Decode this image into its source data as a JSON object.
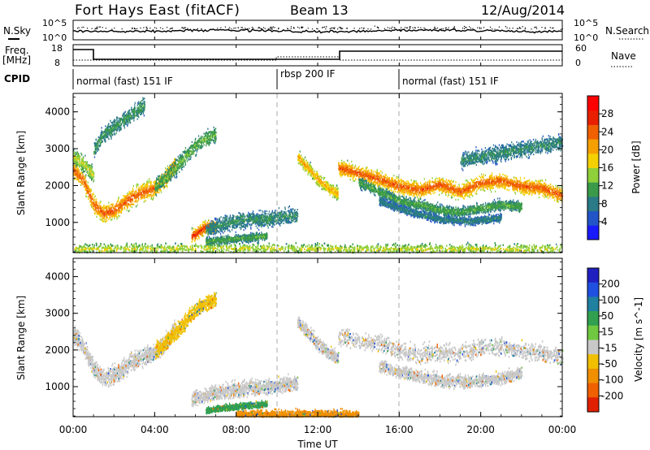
{
  "header": {
    "site": "Fort Hays East (fitACF)",
    "beam": "Beam 13",
    "date": "12/Aug/2014"
  },
  "noise_panel": {
    "left_label": "N.Sky",
    "right_label": "N.Search",
    "left_ticks": [
      "10^5",
      "10^0"
    ],
    "right_ticks": [
      "10^5",
      "10^0"
    ]
  },
  "freq_panel": {
    "left_label": "Freq.",
    "left_unit": "[MHz]",
    "right_label": "Nave",
    "left_ticks": [
      "18",
      "8"
    ],
    "right_ticks": [
      "60",
      "0"
    ]
  },
  "cpid": {
    "label": "CPID",
    "segments": [
      {
        "name": "normal (fast) 151 IF",
        "start_hour": 0,
        "end_hour": 10
      },
      {
        "name": "rbsp 200 IF",
        "start_hour": 10,
        "end_hour": 16
      },
      {
        "name": "normal (fast) 151 IF",
        "start_hour": 16,
        "end_hour": 24
      }
    ]
  },
  "axes": {
    "xlabel": "Time UT",
    "x_ticks": [
      "00:00",
      "04:00",
      "08:00",
      "12:00",
      "16:00",
      "20:00",
      "00:00"
    ],
    "ylabel": "Slant Range [km]",
    "y_ticks": [
      "1000",
      "2000",
      "3000",
      "4000"
    ],
    "ylim": [
      180,
      4500
    ]
  },
  "power_colorbar": {
    "label": "Power [dB]",
    "ticks": [
      "4",
      "8",
      "12",
      "16",
      "20",
      "24",
      "28"
    ],
    "colors": [
      "#1a1aff",
      "#2255c8",
      "#2a7a88",
      "#3a9a4a",
      "#8fcf3a",
      "#f5d000",
      "#f5a000",
      "#f06000",
      "#e82000",
      "#ff0000"
    ]
  },
  "velocity_colorbar": {
    "label": "Velocity [m s^-1]",
    "ticks": [
      "200",
      "100",
      "50",
      "15",
      "-15",
      "-50",
      "-100",
      "-200"
    ],
    "colors": [
      "#2020c0",
      "#2050e0",
      "#2080a0",
      "#30a050",
      "#70c840",
      "#c8c8c8",
      "#f0c000",
      "#f09000",
      "#f06000",
      "#e02000"
    ]
  },
  "chart_data": [
    {
      "type": "heatmap",
      "title": "Power",
      "xlabel": "Time UT",
      "ylabel": "Slant Range [km]",
      "xlim": [
        0,
        24
      ],
      "ylim": [
        180,
        4500
      ],
      "colorbar_label": "Power [dB]",
      "bands": [
        {
          "t": [
            0.0,
            0.5,
            1.0,
            1.5,
            2.0,
            2.5,
            3.0,
            3.5,
            4.0,
            4.5,
            5.0
          ],
          "r": [
            2450,
            2150,
            1500,
            1250,
            1350,
            1550,
            1750,
            1850,
            1950,
            2200,
            2600
          ],
          "width": 350,
          "power": 22
        },
        {
          "t": [
            0.0,
            0.5,
            1.0
          ],
          "r": [
            2800,
            2600,
            2300
          ],
          "width": 300,
          "power": 14
        },
        {
          "t": [
            1.0,
            1.5,
            2.0,
            2.5,
            3.0,
            3.5
          ],
          "r": [
            3000,
            3400,
            3600,
            3800,
            4000,
            4200
          ],
          "width": 300,
          "power": 9
        },
        {
          "t": [
            4.0,
            4.5,
            5.0,
            5.5,
            6.0,
            6.5,
            7.0
          ],
          "r": [
            2000,
            2200,
            2500,
            2800,
            3100,
            3300,
            3400
          ],
          "width": 300,
          "power": 11
        },
        {
          "t": [
            5.8,
            6.0,
            6.5,
            7.0
          ],
          "r": [
            650,
            700,
            900,
            900
          ],
          "width": 250,
          "power": 24
        },
        {
          "t": [
            6.5,
            7.5,
            8.5,
            9.5,
            10.5,
            11.0
          ],
          "r": [
            800,
            1000,
            1100,
            1100,
            1200,
            1200
          ],
          "width": 300,
          "power": 8
        },
        {
          "t": [
            6.5,
            7.5,
            8.5,
            9.5
          ],
          "r": [
            500,
            550,
            600,
            650
          ],
          "width": 150,
          "power": 10
        },
        {
          "t": [
            11.0,
            11.5,
            12.0,
            12.5,
            13.0
          ],
          "r": [
            2800,
            2500,
            2200,
            1950,
            1800
          ],
          "width": 250,
          "power": 18
        },
        {
          "t": [
            13.0,
            14.0,
            15.0,
            16.0,
            17.0,
            18.0,
            19.0,
            20.0,
            21.0,
            22.0,
            23.0,
            24.0
          ],
          "r": [
            2500,
            2350,
            2200,
            2000,
            1900,
            2050,
            1850,
            2100,
            2150,
            2000,
            1950,
            1750
          ],
          "width": 300,
          "power": 22
        },
        {
          "t": [
            14.0,
            15.0,
            16.0,
            17.0,
            18.0,
            19.0,
            20.0,
            21.0,
            22.0
          ],
          "r": [
            2100,
            1850,
            1600,
            1500,
            1350,
            1300,
            1400,
            1500,
            1450
          ],
          "width": 200,
          "power": 10
        },
        {
          "t": [
            15.0,
            16.5,
            18.0,
            19.5,
            21.0
          ],
          "r": [
            1600,
            1300,
            1100,
            1050,
            1150
          ],
          "width": 150,
          "power": 7
        },
        {
          "t": [
            19.0,
            20.0,
            21.0,
            22.0,
            23.0,
            24.0
          ],
          "r": [
            2700,
            2800,
            2900,
            3000,
            3100,
            3200
          ],
          "width": 300,
          "power": 8
        },
        {
          "t": [
            0.0,
            4.0,
            8.0,
            12.0,
            16.0,
            20.0,
            24.0
          ],
          "r": [
            300,
            300,
            320,
            300,
            300,
            300,
            300
          ],
          "width": 200,
          "power": 14
        }
      ]
    },
    {
      "type": "heatmap",
      "title": "Velocity",
      "xlabel": "Time UT",
      "ylabel": "Slant Range [km]",
      "xlim": [
        0,
        24
      ],
      "ylim": [
        180,
        4500
      ],
      "colorbar_label": "Velocity [m s^-1]",
      "note_dominant": "ground scatter (grey, |v| < 15) along the same bands as the power panel",
      "bands": [
        {
          "t": [
            0.0,
            0.5,
            1.0,
            1.5,
            2.0,
            2.5,
            3.0,
            3.5,
            4.0,
            4.5,
            5.0
          ],
          "r": [
            2450,
            2150,
            1500,
            1250,
            1350,
            1550,
            1750,
            1850,
            1950,
            2200,
            2600
          ],
          "width": 350,
          "velocity": 0
        },
        {
          "t": [
            4.0,
            4.5,
            5.0,
            5.5,
            6.0,
            6.5,
            7.0
          ],
          "r": [
            2000,
            2200,
            2500,
            2800,
            3100,
            3300,
            3400
          ],
          "width": 300,
          "velocity": -30
        },
        {
          "t": [
            5.8,
            6.5,
            7.5,
            8.5,
            9.5,
            10.5,
            11.0
          ],
          "r": [
            700,
            800,
            900,
            1000,
            1000,
            1100,
            1100
          ],
          "width": 300,
          "velocity": 0
        },
        {
          "t": [
            6.5,
            7.5,
            8.5,
            9.5
          ],
          "r": [
            380,
            450,
            500,
            550
          ],
          "width": 120,
          "velocity": 40
        },
        {
          "t": [
            8.0,
            10.0,
            12.0,
            14.0
          ],
          "r": [
            250,
            250,
            260,
            250
          ],
          "width": 180,
          "velocity": -60
        },
        {
          "t": [
            11.0,
            11.5,
            12.0,
            12.5,
            13.0
          ],
          "r": [
            2800,
            2500,
            2200,
            1950,
            1800
          ],
          "width": 250,
          "velocity": 0
        },
        {
          "t": [
            13.0,
            14.0,
            15.0,
            16.0,
            17.0,
            18.0,
            19.0,
            20.0,
            21.0,
            22.0,
            23.0,
            24.0
          ],
          "r": [
            2400,
            2300,
            2200,
            2000,
            1900,
            2000,
            1900,
            2100,
            2100,
            2000,
            1950,
            1800
          ],
          "width": 350,
          "velocity": 0
        },
        {
          "t": [
            15.0,
            16.5,
            18.0,
            19.5,
            21.0,
            22.0
          ],
          "r": [
            1600,
            1350,
            1200,
            1150,
            1250,
            1400
          ],
          "width": 250,
          "velocity": 0
        }
      ]
    }
  ]
}
